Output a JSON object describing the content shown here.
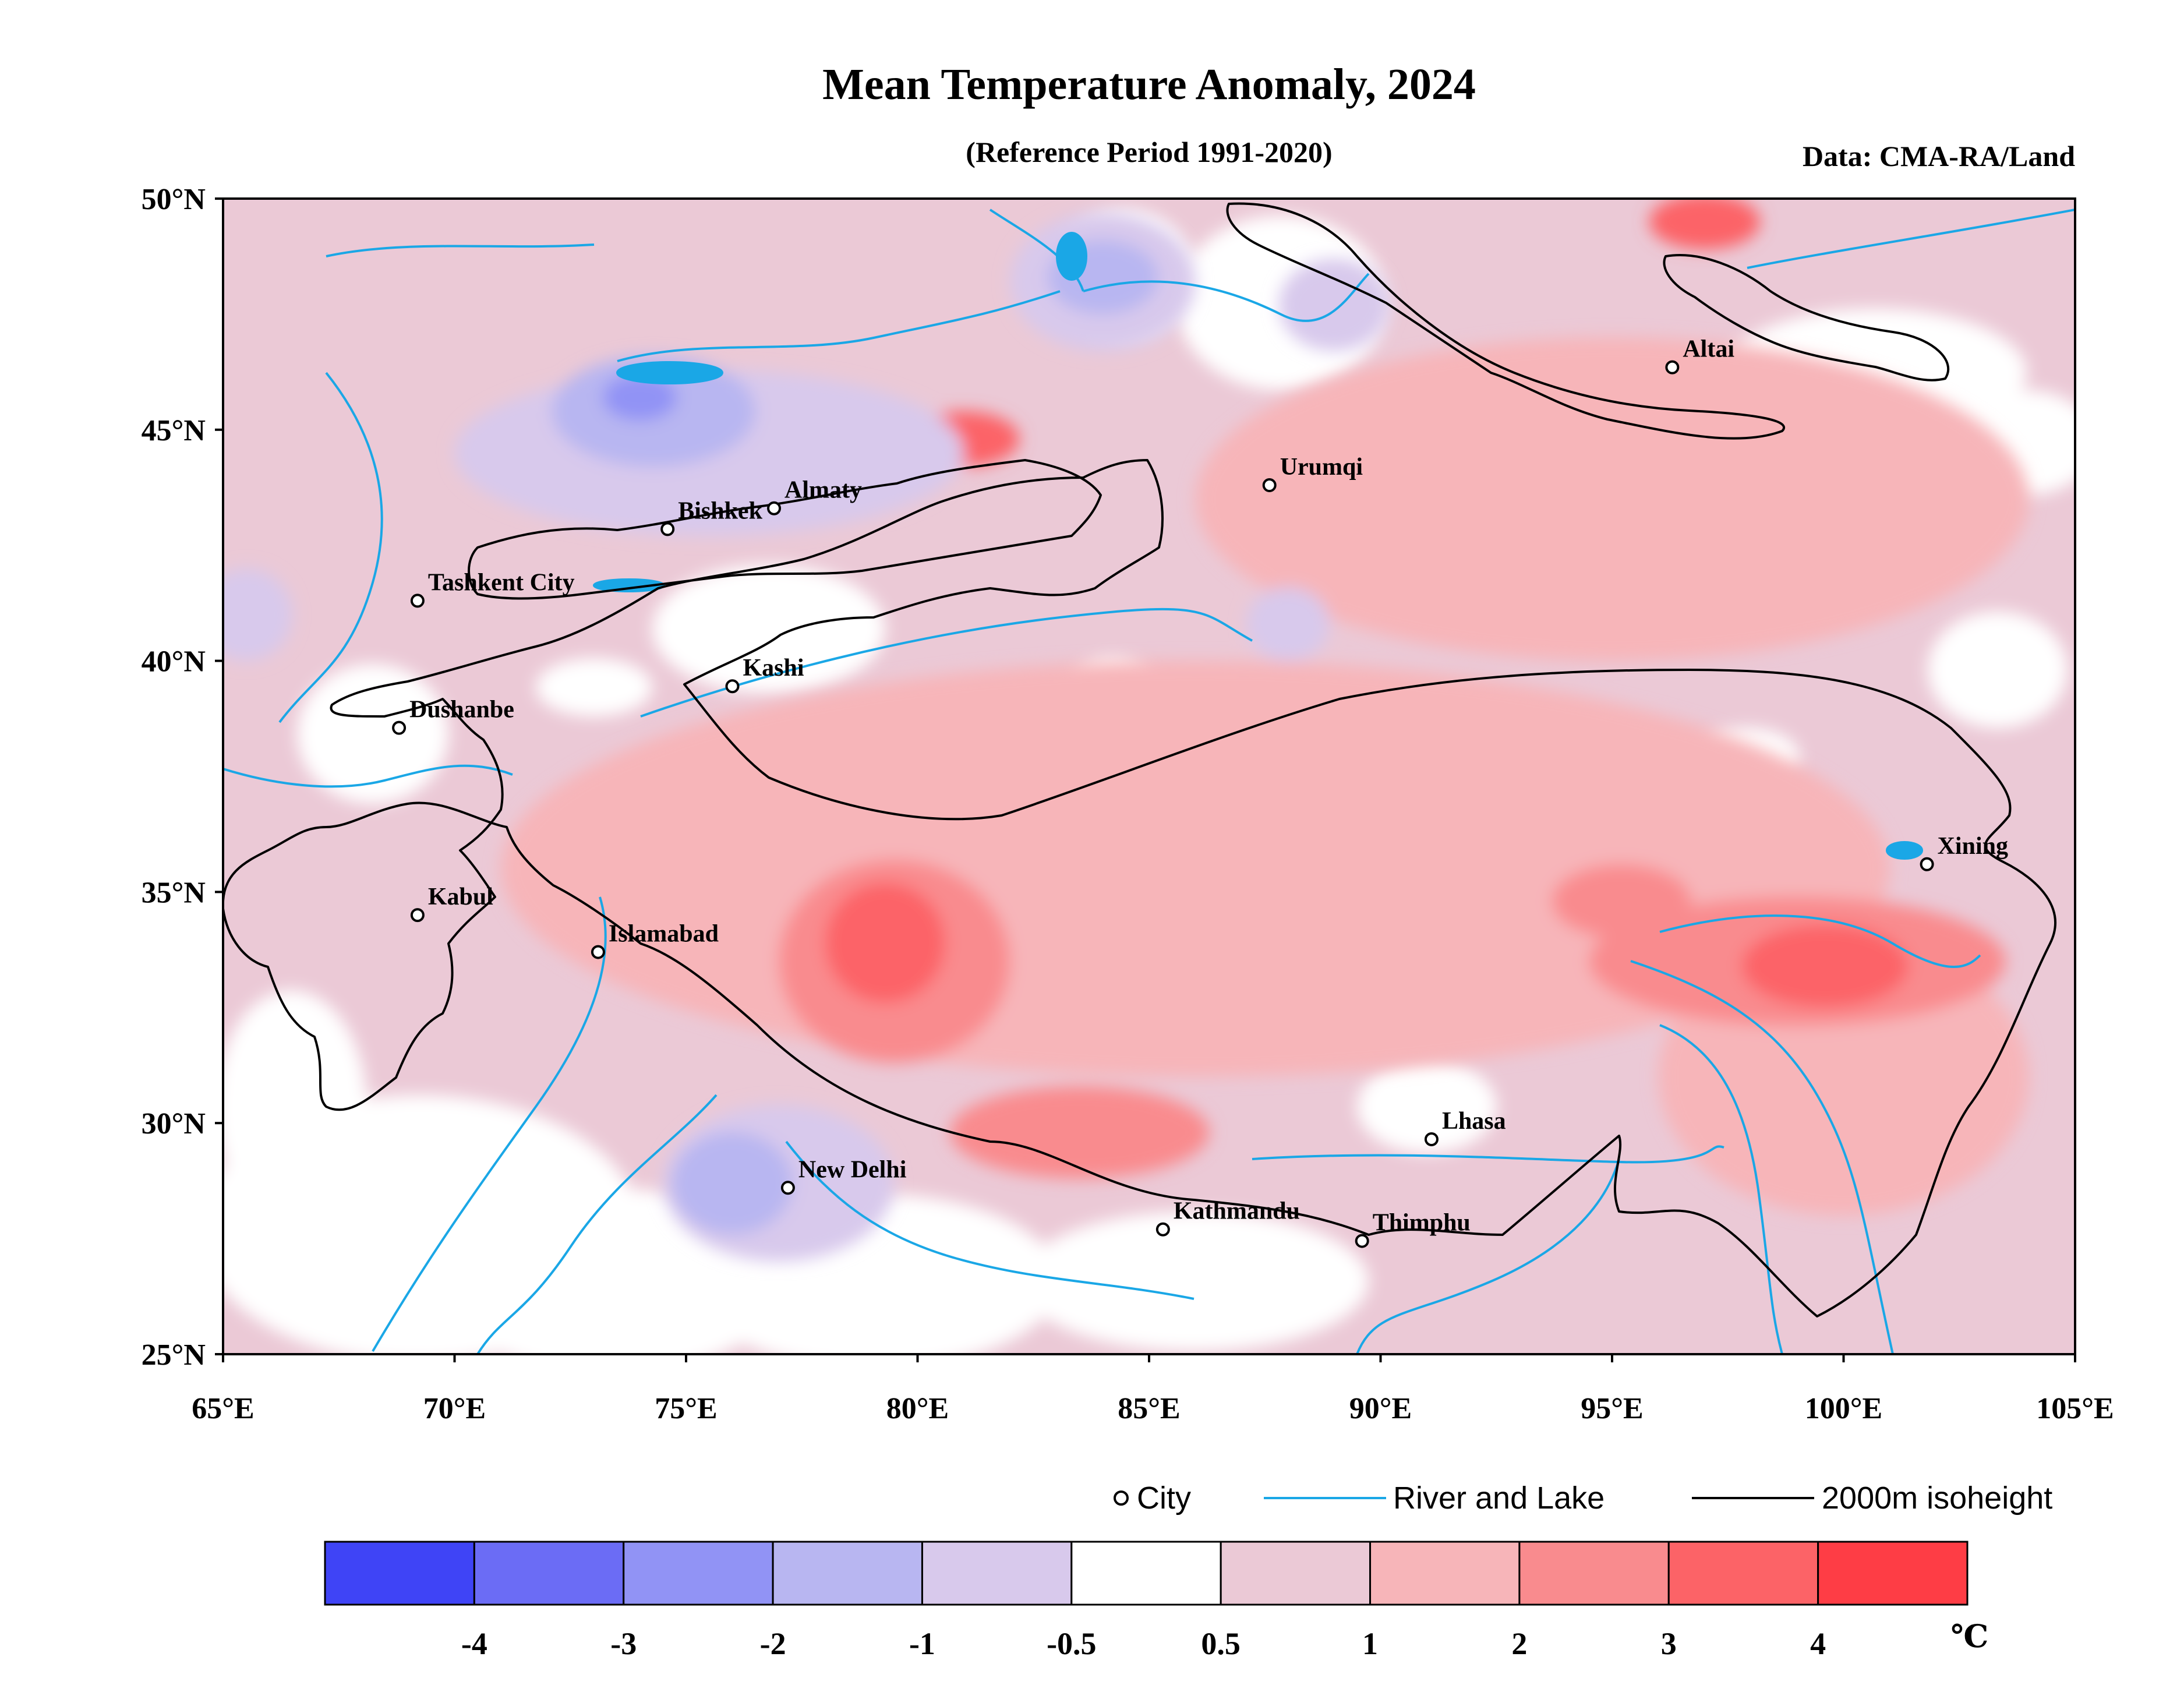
{
  "title": "Mean Temperature Anomaly, 2024",
  "subtitle": "(Reference Period 1991-2020)",
  "source": "Data: CMA-RA/Land",
  "map": {
    "lon_range": [
      65,
      105
    ],
    "lat_range": [
      25,
      50
    ],
    "lon_ticks": [
      {
        "value": 65,
        "label": "65°E"
      },
      {
        "value": 70,
        "label": "70°E"
      },
      {
        "value": 75,
        "label": "75°E"
      },
      {
        "value": 80,
        "label": "80°E"
      },
      {
        "value": 85,
        "label": "85°E"
      },
      {
        "value": 90,
        "label": "90°E"
      },
      {
        "value": 95,
        "label": "95°E"
      },
      {
        "value": 100,
        "label": "100°E"
      },
      {
        "value": 105,
        "label": "105°E"
      }
    ],
    "lat_ticks": [
      {
        "value": 50,
        "label": "50°N"
      },
      {
        "value": 45,
        "label": "45°N"
      },
      {
        "value": 40,
        "label": "40°N"
      },
      {
        "value": 35,
        "label": "35°N"
      },
      {
        "value": 30,
        "label": "30°N"
      },
      {
        "value": 25,
        "label": "25°N"
      }
    ],
    "cities": [
      {
        "name": "Altai",
        "lon": 96.3,
        "lat": 46.35
      },
      {
        "name": "Urumqi",
        "lon": 87.6,
        "lat": 43.8
      },
      {
        "name": "Almaty",
        "lon": 76.9,
        "lat": 43.3
      },
      {
        "name": "Bishkek",
        "lon": 74.6,
        "lat": 42.85
      },
      {
        "name": "Tashkent City",
        "lon": 69.2,
        "lat": 41.3
      },
      {
        "name": "Kashi",
        "lon": 76.0,
        "lat": 39.45
      },
      {
        "name": "Dushanbe",
        "lon": 68.8,
        "lat": 38.55
      },
      {
        "name": "Xining",
        "lon": 101.8,
        "lat": 35.6
      },
      {
        "name": "Kabul",
        "lon": 69.2,
        "lat": 34.5
      },
      {
        "name": "Islamabad",
        "lon": 73.1,
        "lat": 33.7
      },
      {
        "name": "Lhasa",
        "lon": 91.1,
        "lat": 29.65
      },
      {
        "name": "New Delhi",
        "lon": 77.2,
        "lat": 28.6
      },
      {
        "name": "Kathmandu",
        "lon": 85.3,
        "lat": 27.7
      },
      {
        "name": "Thimphu",
        "lon": 89.6,
        "lat": 27.45
      }
    ]
  },
  "legend": {
    "city_label": "City",
    "river_label": "River and Lake",
    "isoheight_label": "2000m isoheight",
    "river_color": "#1aa7e6",
    "isoheight_color": "#000000"
  },
  "colorbar": {
    "unit": "℃",
    "colors": [
      "#3f44f6",
      "#6b6cf5",
      "#9193f5",
      "#b8b6f1",
      "#d8c9ec",
      "#ffffff",
      "#ebc9d6",
      "#f7b5b9",
      "#f98b8e",
      "#fc6367",
      "#fe3d45"
    ],
    "labels": [
      "-4",
      "-3",
      "-2",
      "-1",
      "-0.5",
      "0.5",
      "1",
      "2",
      "3",
      "4"
    ]
  },
  "anomaly_regions": [
    {
      "level": 1,
      "lon": 86.0,
      "lat": 35.5,
      "rlon": 15.0,
      "rlat": 4.5
    },
    {
      "level": 1,
      "lon": 95.0,
      "lat": 43.5,
      "rlon": 9.0,
      "rlat": 3.5
    },
    {
      "level": 1,
      "lon": 100.0,
      "lat": 31.0,
      "rlon": 4.0,
      "rlat": 3.0
    },
    {
      "level": 2,
      "lon": 79.5,
      "lat": 33.5,
      "rlon": 2.5,
      "rlat": 2.2
    },
    {
      "level": 2,
      "lon": 99.0,
      "lat": 33.5,
      "rlon": 4.5,
      "rlat": 1.4
    },
    {
      "level": 2,
      "lon": 83.5,
      "lat": 29.8,
      "rlon": 2.8,
      "rlat": 1.0
    },
    {
      "level": 2,
      "lon": 95.2,
      "lat": 34.8,
      "rlon": 1.5,
      "rlat": 0.8
    },
    {
      "level": 3,
      "lon": 79.3,
      "lat": 33.9,
      "rlon": 1.3,
      "rlat": 1.3
    },
    {
      "level": 3,
      "lon": 99.6,
      "lat": 33.4,
      "rlon": 1.8,
      "rlat": 0.9
    },
    {
      "level": 3,
      "lon": 97.0,
      "lat": 49.5,
      "rlon": 1.2,
      "rlat": 0.6
    },
    {
      "level": 3,
      "lon": 81.0,
      "lat": 44.8,
      "rlon": 1.2,
      "rlat": 0.6
    },
    {
      "level": -1,
      "lon": 75.5,
      "lat": 44.5,
      "rlon": 5.5,
      "rlat": 1.8
    },
    {
      "level": -1,
      "lon": 84.0,
      "lat": 48.2,
      "rlon": 2.0,
      "rlat": 1.5
    },
    {
      "level": -1,
      "lon": 77.0,
      "lat": 28.7,
      "rlon": 2.5,
      "rlat": 1.7
    },
    {
      "level": -1,
      "lon": 89.0,
      "lat": 47.7,
      "rlon": 1.2,
      "rlat": 1.0
    },
    {
      "level": -1,
      "lon": 88.0,
      "lat": 40.8,
      "rlon": 0.9,
      "rlat": 0.8
    },
    {
      "level": -1,
      "lon": 65.5,
      "lat": 41.0,
      "rlon": 1.0,
      "rlat": 1.0
    },
    {
      "level": -2,
      "lon": 74.3,
      "lat": 45.4,
      "rlon": 2.2,
      "rlat": 1.2
    },
    {
      "level": -2,
      "lon": 76.0,
      "lat": 28.7,
      "rlon": 1.3,
      "rlat": 1.1
    },
    {
      "level": -2,
      "lon": 84.0,
      "lat": 48.3,
      "rlon": 1.2,
      "rlat": 0.8
    },
    {
      "level": -3,
      "lon": 74.0,
      "lat": 45.7,
      "rlon": 0.8,
      "rlat": 0.5
    }
  ]
}
